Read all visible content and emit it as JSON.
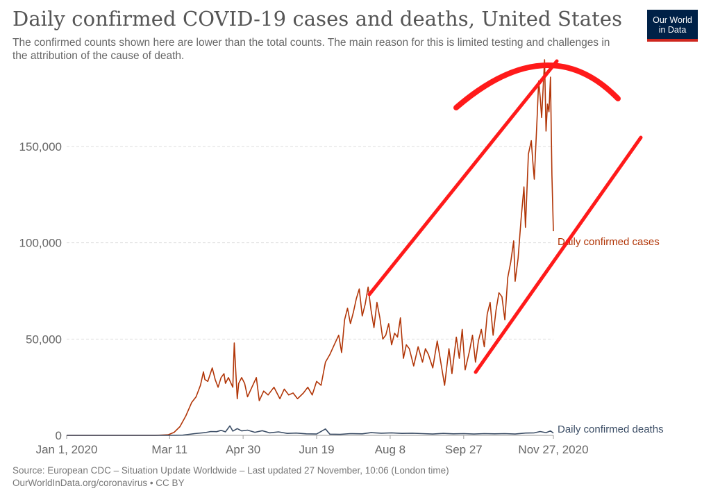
{
  "header": {
    "title": "Daily confirmed COVID-19 cases and deaths, United States",
    "subtitle": "The confirmed counts shown here are lower than the total counts. The main reason for this is limited testing and challenges in the attribution of the cause of death."
  },
  "logo": {
    "line1": "Our World",
    "line2": "in Data"
  },
  "footer": {
    "source": "Source: European CDC – Situation Update Worldwide – Last updated 27 November, 10:06 (London time)",
    "link": "OurWorldInData.org/coronavirus • CC BY"
  },
  "colors": {
    "cases": "#b13507",
    "deaths": "#3c4e66",
    "annotation": "#ff1a1a",
    "grid": "#dddddd",
    "axis_text": "#666666"
  },
  "chart_data": {
    "type": "line",
    "x_label": "",
    "y_label": "",
    "ylim": [
      0,
      190000
    ],
    "x_range": [
      "2020-01-01",
      "2020-11-27"
    ],
    "y_ticks": [
      0,
      50000,
      100000,
      150000
    ],
    "y_tick_labels": [
      "0",
      "50,000",
      "100,000",
      "150,000"
    ],
    "x_tick_labels": [
      "Jan 1, 2020",
      "Mar 11",
      "Apr 30",
      "Jun 19",
      "Aug 8",
      "Sep 27",
      "Nov 27, 2020"
    ],
    "x_tick_dates": [
      "2020-01-01",
      "2020-03-11",
      "2020-04-30",
      "2020-06-19",
      "2020-08-08",
      "2020-09-27",
      "2020-11-27"
    ],
    "grid": true,
    "series": [
      {
        "name": "Daily confirmed cases",
        "color": "#b13507",
        "points": [
          [
            "2020-01-01",
            0
          ],
          [
            "2020-03-01",
            0
          ],
          [
            "2020-03-10",
            300
          ],
          [
            "2020-03-14",
            1500
          ],
          [
            "2020-03-18",
            4500
          ],
          [
            "2020-03-22",
            10000
          ],
          [
            "2020-03-26",
            17000
          ],
          [
            "2020-03-29",
            20000
          ],
          [
            "2020-04-01",
            26000
          ],
          [
            "2020-04-03",
            33000
          ],
          [
            "2020-04-04",
            29000
          ],
          [
            "2020-04-06",
            28000
          ],
          [
            "2020-04-09",
            35000
          ],
          [
            "2020-04-11",
            29000
          ],
          [
            "2020-04-13",
            25000
          ],
          [
            "2020-04-15",
            30000
          ],
          [
            "2020-04-17",
            32000
          ],
          [
            "2020-04-18",
            27000
          ],
          [
            "2020-04-20",
            30000
          ],
          [
            "2020-04-23",
            25000
          ],
          [
            "2020-04-24",
            48000
          ],
          [
            "2020-04-26",
            19000
          ],
          [
            "2020-04-27",
            27000
          ],
          [
            "2020-04-29",
            30000
          ],
          [
            "2020-05-01",
            27000
          ],
          [
            "2020-05-03",
            20000
          ],
          [
            "2020-05-06",
            25000
          ],
          [
            "2020-05-09",
            30000
          ],
          [
            "2020-05-11",
            18000
          ],
          [
            "2020-05-14",
            23000
          ],
          [
            "2020-05-17",
            21000
          ],
          [
            "2020-05-21",
            25000
          ],
          [
            "2020-05-25",
            19000
          ],
          [
            "2020-05-28",
            24000
          ],
          [
            "2020-05-31",
            21000
          ],
          [
            "2020-06-03",
            22000
          ],
          [
            "2020-06-06",
            19000
          ],
          [
            "2020-06-10",
            22000
          ],
          [
            "2020-06-13",
            25000
          ],
          [
            "2020-06-16",
            21000
          ],
          [
            "2020-06-19",
            28000
          ],
          [
            "2020-06-22",
            26000
          ],
          [
            "2020-06-25",
            38000
          ],
          [
            "2020-06-28",
            42000
          ],
          [
            "2020-07-01",
            47000
          ],
          [
            "2020-07-04",
            52000
          ],
          [
            "2020-07-06",
            43000
          ],
          [
            "2020-07-08",
            60000
          ],
          [
            "2020-07-10",
            66000
          ],
          [
            "2020-07-12",
            58000
          ],
          [
            "2020-07-14",
            64000
          ],
          [
            "2020-07-16",
            71000
          ],
          [
            "2020-07-18",
            76000
          ],
          [
            "2020-07-20",
            62000
          ],
          [
            "2020-07-22",
            68000
          ],
          [
            "2020-07-24",
            77000
          ],
          [
            "2020-07-26",
            65000
          ],
          [
            "2020-07-28",
            56000
          ],
          [
            "2020-07-30",
            69000
          ],
          [
            "2020-08-01",
            61000
          ],
          [
            "2020-08-03",
            50000
          ],
          [
            "2020-08-05",
            52000
          ],
          [
            "2020-08-07",
            58000
          ],
          [
            "2020-08-09",
            47000
          ],
          [
            "2020-08-11",
            53000
          ],
          [
            "2020-08-13",
            51000
          ],
          [
            "2020-08-15",
            61000
          ],
          [
            "2020-08-17",
            40000
          ],
          [
            "2020-08-19",
            47000
          ],
          [
            "2020-08-21",
            45000
          ],
          [
            "2020-08-24",
            36000
          ],
          [
            "2020-08-27",
            46000
          ],
          [
            "2020-08-30",
            38000
          ],
          [
            "2020-09-01",
            45000
          ],
          [
            "2020-09-03",
            42000
          ],
          [
            "2020-09-06",
            35000
          ],
          [
            "2020-09-09",
            49000
          ],
          [
            "2020-09-11",
            40000
          ],
          [
            "2020-09-14",
            26000
          ],
          [
            "2020-09-17",
            45000
          ],
          [
            "2020-09-19",
            32000
          ],
          [
            "2020-09-22",
            51000
          ],
          [
            "2020-09-24",
            40000
          ],
          [
            "2020-09-26",
            55000
          ],
          [
            "2020-09-28",
            34000
          ],
          [
            "2020-10-01",
            44000
          ],
          [
            "2020-10-03",
            52000
          ],
          [
            "2020-10-05",
            38000
          ],
          [
            "2020-10-07",
            49000
          ],
          [
            "2020-10-09",
            55000
          ],
          [
            "2020-10-11",
            46000
          ],
          [
            "2020-10-13",
            63000
          ],
          [
            "2020-10-15",
            69000
          ],
          [
            "2020-10-17",
            52000
          ],
          [
            "2020-10-19",
            65000
          ],
          [
            "2020-10-21",
            74000
          ],
          [
            "2020-10-23",
            72000
          ],
          [
            "2020-10-25",
            60000
          ],
          [
            "2020-10-27",
            82000
          ],
          [
            "2020-10-29",
            90000
          ],
          [
            "2020-10-31",
            101000
          ],
          [
            "2020-11-01",
            80000
          ],
          [
            "2020-11-03",
            92000
          ],
          [
            "2020-11-05",
            112000
          ],
          [
            "2020-11-07",
            129000
          ],
          [
            "2020-11-08",
            108000
          ],
          [
            "2020-11-10",
            146000
          ],
          [
            "2020-11-12",
            153000
          ],
          [
            "2020-11-13",
            142000
          ],
          [
            "2020-11-14",
            133000
          ],
          [
            "2020-11-16",
            166000
          ],
          [
            "2020-11-17",
            184000
          ],
          [
            "2020-11-18",
            176000
          ],
          [
            "2020-11-19",
            165000
          ],
          [
            "2020-11-21",
            195000
          ],
          [
            "2020-11-22",
            158000
          ],
          [
            "2020-11-23",
            172000
          ],
          [
            "2020-11-24",
            168000
          ],
          [
            "2020-11-25",
            186000
          ],
          [
            "2020-11-26",
            135000
          ],
          [
            "2020-11-27",
            106000
          ]
        ]
      },
      {
        "name": "Daily confirmed deaths",
        "color": "#3c4e66",
        "points": [
          [
            "2020-01-01",
            0
          ],
          [
            "2020-03-10",
            0
          ],
          [
            "2020-03-20",
            100
          ],
          [
            "2020-03-28",
            900
          ],
          [
            "2020-04-04",
            1400
          ],
          [
            "2020-04-08",
            2000
          ],
          [
            "2020-04-12",
            1900
          ],
          [
            "2020-04-15",
            2600
          ],
          [
            "2020-04-18",
            1800
          ],
          [
            "2020-04-21",
            4900
          ],
          [
            "2020-04-23",
            2200
          ],
          [
            "2020-04-26",
            3500
          ],
          [
            "2020-04-29",
            2300
          ],
          [
            "2020-05-03",
            2700
          ],
          [
            "2020-05-08",
            1600
          ],
          [
            "2020-05-13",
            2400
          ],
          [
            "2020-05-18",
            1300
          ],
          [
            "2020-05-24",
            1800
          ],
          [
            "2020-05-30",
            1000
          ],
          [
            "2020-06-05",
            1200
          ],
          [
            "2020-06-12",
            800
          ],
          [
            "2020-06-19",
            700
          ],
          [
            "2020-06-25",
            3300
          ],
          [
            "2020-06-28",
            600
          ],
          [
            "2020-07-05",
            500
          ],
          [
            "2020-07-12",
            900
          ],
          [
            "2020-07-20",
            800
          ],
          [
            "2020-07-26",
            1400
          ],
          [
            "2020-08-02",
            1100
          ],
          [
            "2020-08-09",
            1300
          ],
          [
            "2020-08-16",
            1000
          ],
          [
            "2020-08-23",
            1100
          ],
          [
            "2020-08-30",
            900
          ],
          [
            "2020-09-06",
            700
          ],
          [
            "2020-09-13",
            1000
          ],
          [
            "2020-09-20",
            800
          ],
          [
            "2020-09-27",
            900
          ],
          [
            "2020-10-04",
            700
          ],
          [
            "2020-10-11",
            900
          ],
          [
            "2020-10-18",
            800
          ],
          [
            "2020-10-25",
            900
          ],
          [
            "2020-11-01",
            700
          ],
          [
            "2020-11-08",
            1200
          ],
          [
            "2020-11-14",
            1300
          ],
          [
            "2020-11-18",
            2000
          ],
          [
            "2020-11-22",
            1400
          ],
          [
            "2020-11-25",
            2300
          ],
          [
            "2020-11-27",
            1200
          ]
        ]
      }
    ]
  }
}
